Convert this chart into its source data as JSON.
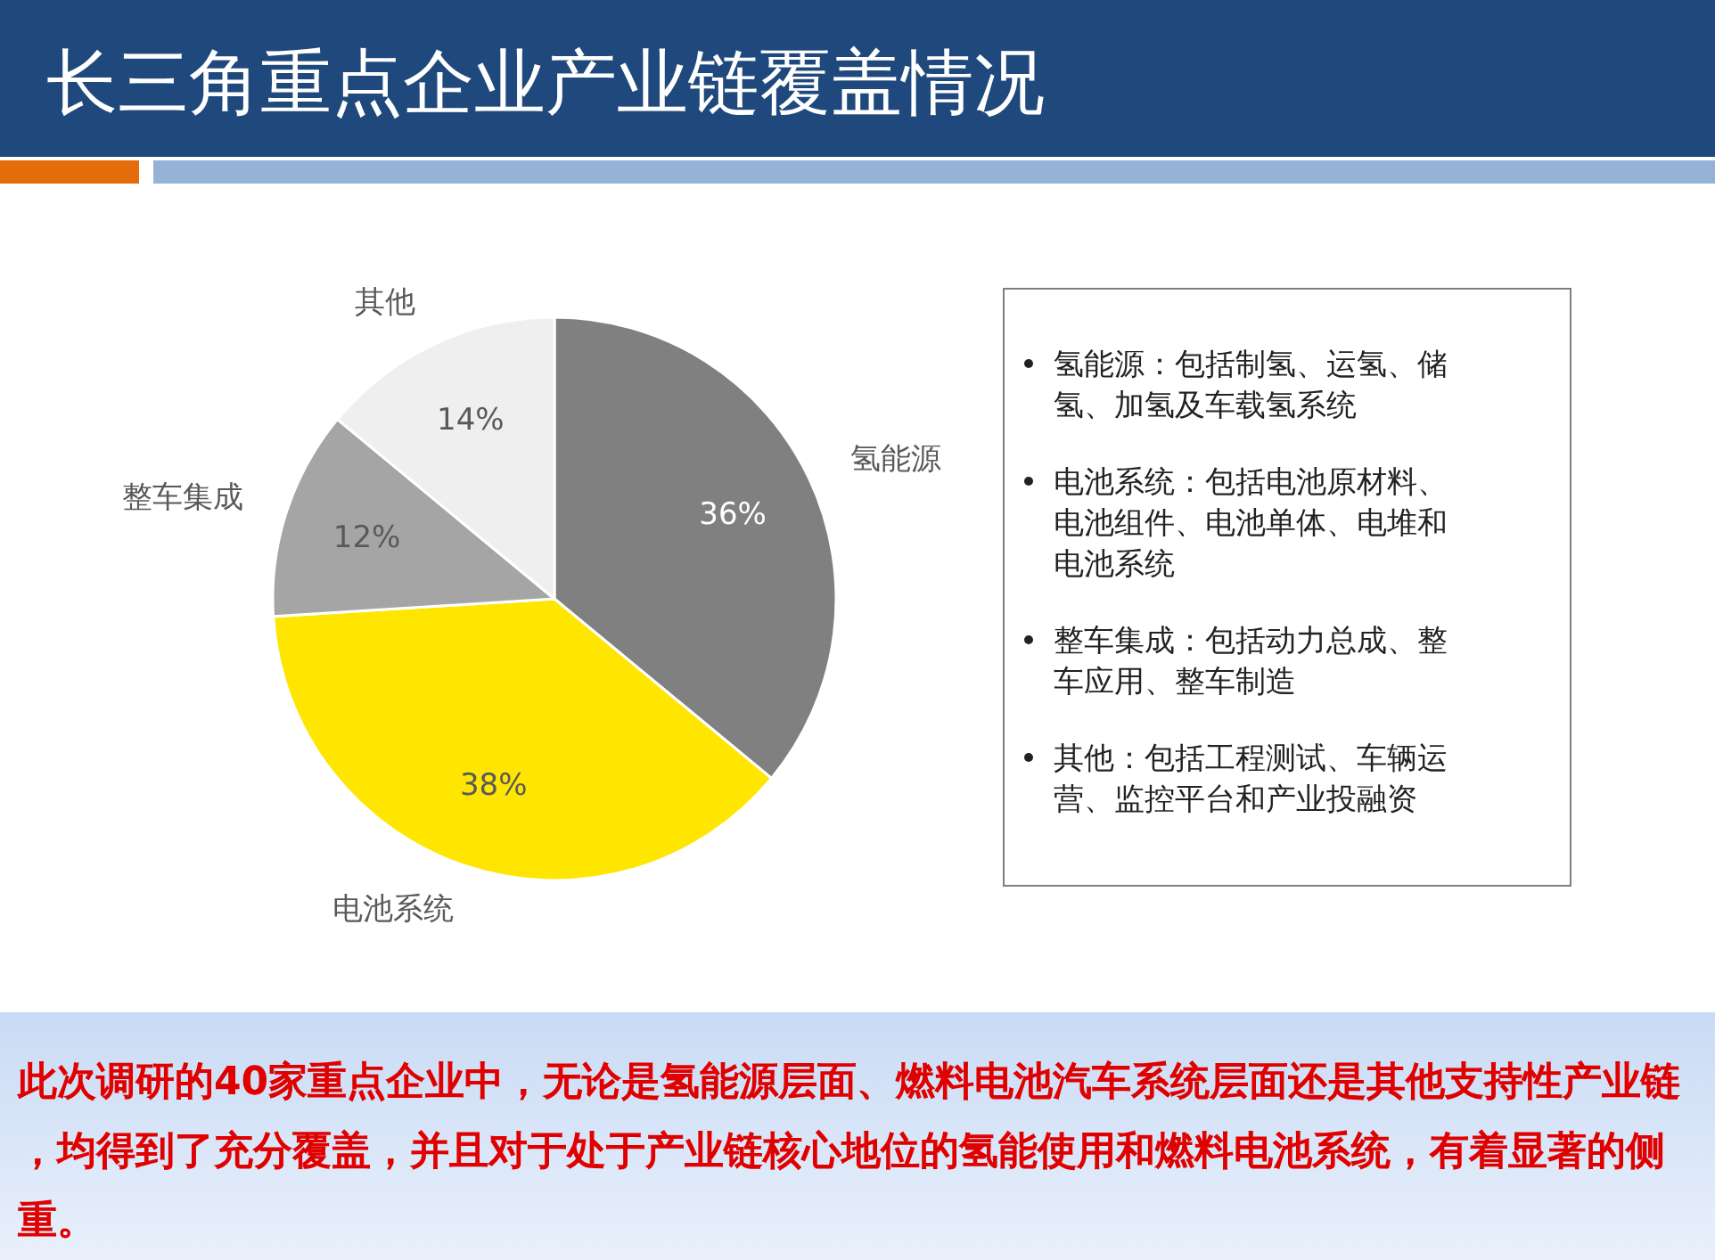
{
  "chart_data": {
    "type": "pie",
    "title": "长三角重点企业产业链覆盖情况",
    "categories": [
      "氢能源",
      "电池系统",
      "整车集成",
      "其他"
    ],
    "values": [
      36,
      38,
      12,
      14
    ],
    "value_labels": [
      "36%",
      "38%",
      "12%",
      "14%"
    ],
    "colors": [
      "#808080",
      "#ffe600",
      "#a5a5a5",
      "#efefef"
    ],
    "annotations": [
      "氢能源：包括制氢、运氢、储氢、加氢及车载氢系统",
      "电池系统：包括电池原材料、电池组件、电池单体、电堆和电池系统",
      "整车集成：包括动力总成、整车应用、整车制造",
      "其他：包括工程测试、车辆运营、监控平台和产业投融资",
      "此次调研的40家重点企业中，无论是氢能源层面、燃料电池汽车系统层面还是其他支持性产业链，均得到了充分覆盖，并且对于处于产业链核心地位的氢能使用和燃料电池系统，有着显著的侧重。"
    ]
  }
}
